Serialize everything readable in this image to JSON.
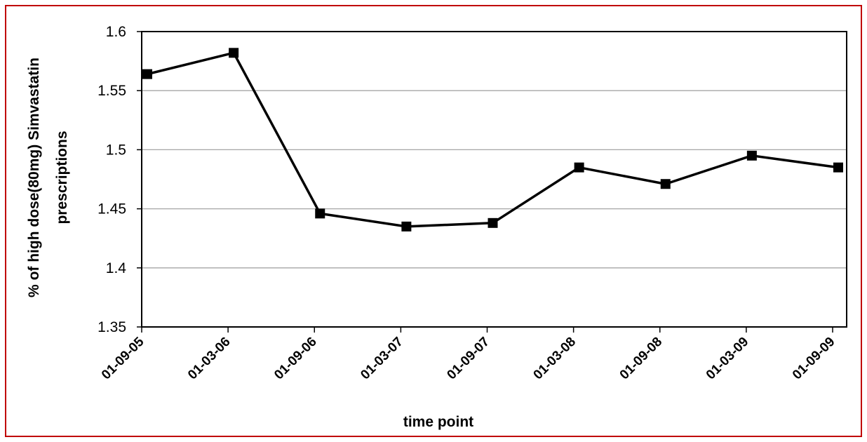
{
  "chart_data": {
    "type": "line",
    "title": "",
    "xlabel": "time point",
    "ylabel_lines": [
      "% of high dose(80mg) Simvastatin",
      "prescriptions"
    ],
    "categories": [
      "01-09-05",
      "01-03-06",
      "01-09-06",
      "01-03-07",
      "01-09-07",
      "01-03-08",
      "01-09-08",
      "01-03-09",
      "01-09-09"
    ],
    "series": [
      {
        "values": [
          1.564,
          1.582,
          1.446,
          1.435,
          1.438,
          1.485,
          1.471,
          1.495,
          1.485
        ]
      }
    ],
    "ylim": [
      1.35,
      1.6
    ],
    "yticks": [
      1.35,
      1.4,
      1.45,
      1.5,
      1.55,
      1.6
    ],
    "ytick_labels": [
      "1.35",
      "1.4",
      "1.45",
      "1.5",
      "1.55",
      "1.6"
    ],
    "grid": "horizontal",
    "marker": "square",
    "colors": {
      "line": "#000000",
      "grid": "#a6a6a6",
      "frame_border": "#c00000"
    }
  }
}
